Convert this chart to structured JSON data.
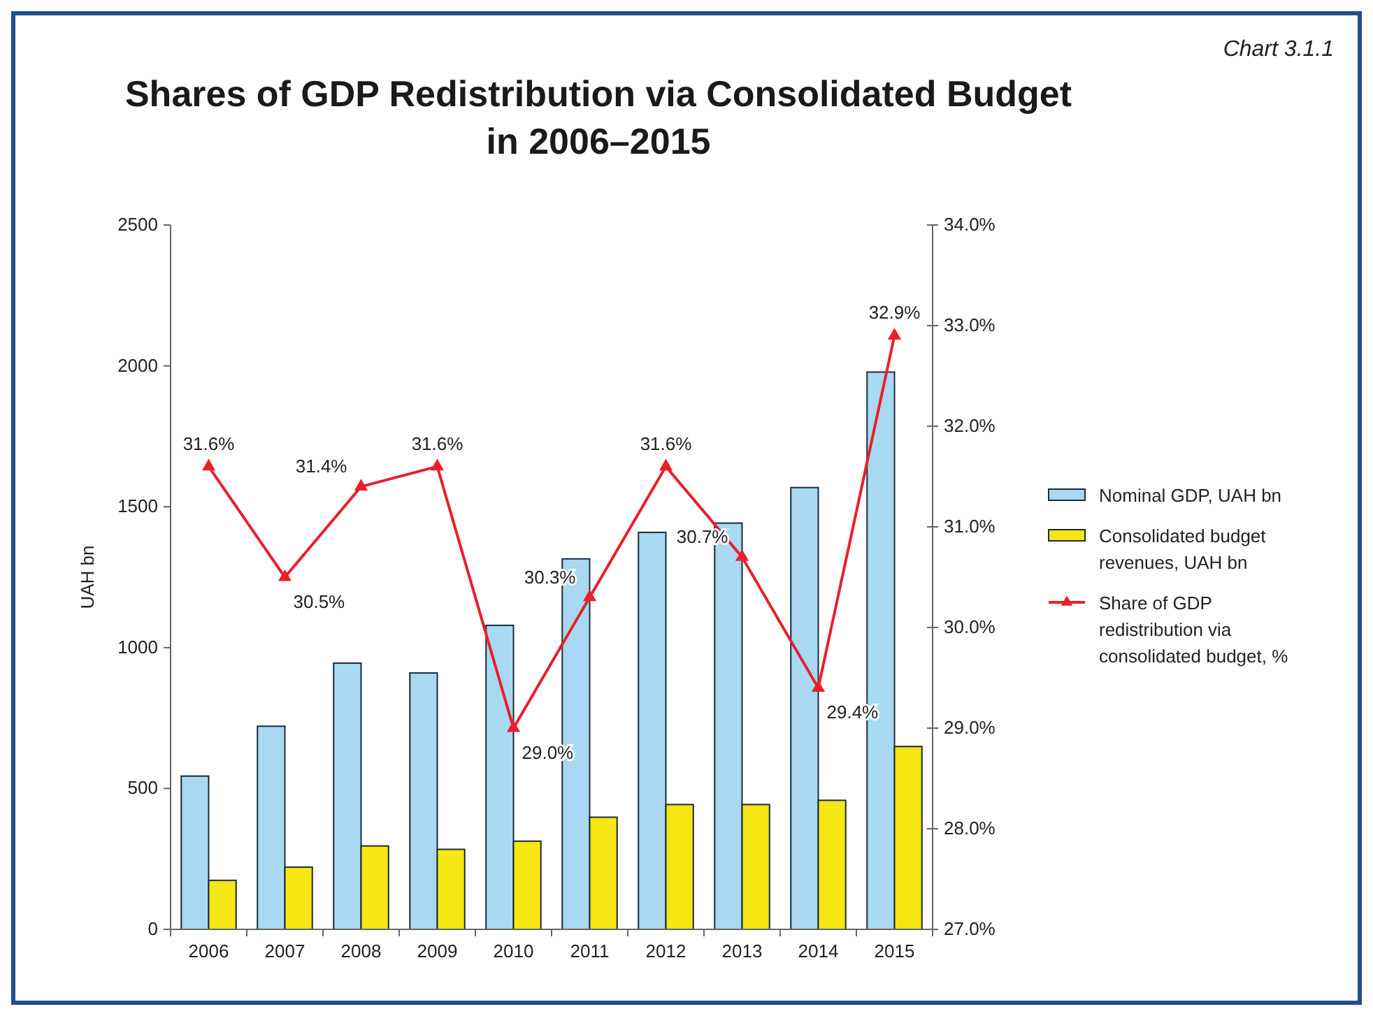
{
  "chart_data": {
    "type": "bar",
    "title": "Shares of GDP Redistribution via Consolidated Budget\nin 2006–2015",
    "ylabel": "UAH bn",
    "annotations": [
      "Chart 3.1.1"
    ],
    "categories": [
      "2006",
      "2007",
      "2008",
      "2009",
      "2010",
      "2011",
      "2012",
      "2013",
      "2014",
      "2015"
    ],
    "series": [
      {
        "name": "Nominal GDP, UAH bn",
        "color": "#a9d9f2",
        "values": [
          544,
          721,
          945,
          910,
          1079,
          1315,
          1409,
          1442,
          1568,
          1978
        ]
      },
      {
        "name": "Consolidated budget revenues, UAH bn",
        "color": "#f5e614",
        "values": [
          174,
          221,
          296,
          284,
          313,
          398,
          443,
          443,
          458,
          649
        ]
      },
      {
        "name": "Share of GDP redistribution via consolidated budget, %",
        "type": "line",
        "axis": "y2",
        "color": "#e8202a",
        "marker": "triangle",
        "values": [
          31.6,
          30.5,
          31.4,
          31.6,
          29.0,
          30.3,
          31.6,
          30.7,
          29.4,
          32.9
        ],
        "value_labels": [
          "31.6%",
          "30.5%",
          "31.4%",
          "31.6%",
          "29.0%",
          "30.3%",
          "31.6%",
          "30.7%",
          "29.4%",
          "32.9%"
        ]
      }
    ],
    "ylim": [
      0,
      2500
    ],
    "yticks": [
      0,
      500,
      1000,
      1500,
      2000,
      2500
    ],
    "y2lim": [
      27,
      34
    ],
    "y2ticks": [
      {
        "value": 27,
        "label": "27.0%"
      },
      {
        "value": 28,
        "label": "28.0%"
      },
      {
        "value": 29,
        "label": "29.0%"
      },
      {
        "value": 30,
        "label": "30.0%"
      },
      {
        "value": 31,
        "label": "31.0%"
      },
      {
        "value": 32,
        "label": "32.0%"
      },
      {
        "value": 33,
        "label": "33.0%"
      },
      {
        "value": 34,
        "label": "34.0%"
      }
    ],
    "grid": false,
    "legend": "right"
  }
}
